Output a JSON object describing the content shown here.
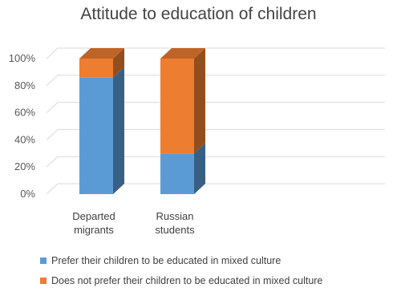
{
  "chart_data": {
    "type": "bar",
    "stacked": true,
    "three_d": true,
    "title": "Attitude to education of children",
    "categories": [
      [
        "Departed",
        "migrants"
      ],
      [
        "Russian",
        "students"
      ]
    ],
    "series": [
      {
        "name": "Prefer their children to be educated in mixed culture",
        "color": "#5b9bd5",
        "values": [
          86,
          30
        ]
      },
      {
        "name": "Does not  prefer their children to be educated in mixed culture",
        "color": "#ed7d31",
        "values": [
          14,
          70
        ]
      }
    ],
    "yticks": [
      "0%",
      "20%",
      "40%",
      "60%",
      "80%",
      "100%"
    ],
    "ylim": [
      0,
      100
    ],
    "grid": true,
    "legend_position": "bottom"
  }
}
